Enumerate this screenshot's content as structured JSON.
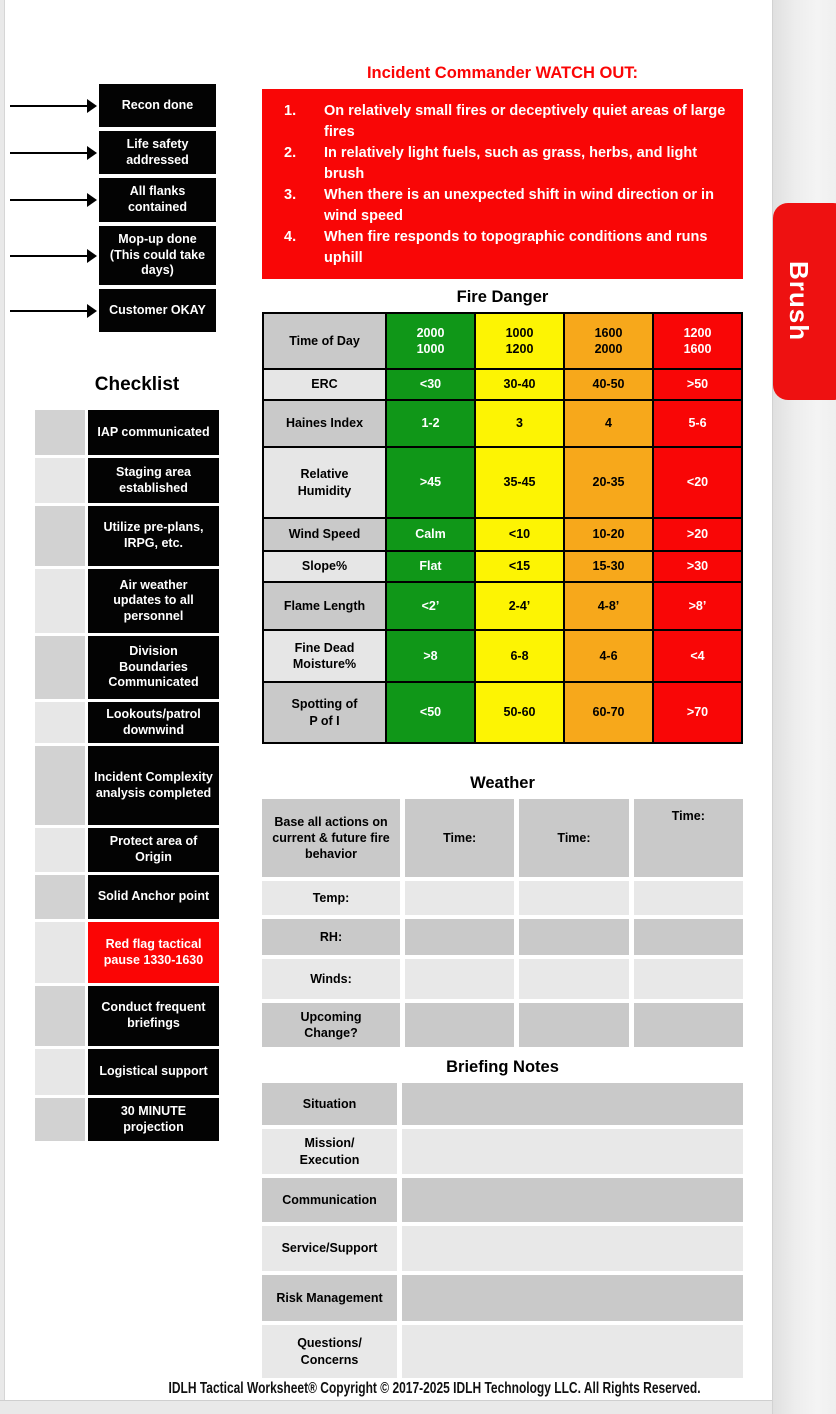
{
  "page": {
    "side_tab_label": "Brush",
    "footer_text": "IDLH Tactical Worksheet® Copyright © 2017-2025 IDLH Technology LLC. All Rights Reserved."
  },
  "colors": {
    "alert_red": "#f90606",
    "fire_green": "#109718",
    "fire_yellow": "#fdf403",
    "fire_orange": "#f7a81b",
    "fire_red": "#f90606",
    "box_black": "#030303",
    "cell_gray_dark": "#c9c9c9",
    "cell_gray_light": "#e8e8e8",
    "tab_red": "#ee1111"
  },
  "status_boxes": [
    "Recon done",
    "Life safety addressed",
    "All flanks contained",
    "Mop-up done (This could take days)",
    "Customer OKAY"
  ],
  "watch_out": {
    "title": "Incident Commander WATCH OUT:",
    "items": [
      "On relatively small fires or deceptively quiet areas of large fires",
      "In relatively light fuels, such as grass, herbs, and light brush",
      "When there is an unexpected shift in wind direction or in wind speed",
      "When fire responds to topographic conditions and runs uphill"
    ]
  },
  "checklist": {
    "title": "Checklist",
    "items": [
      {
        "label": "IAP communicated",
        "highlight": false
      },
      {
        "label": "Staging area established",
        "highlight": false
      },
      {
        "label": "Utilize pre-plans, IRPG, etc.",
        "highlight": false
      },
      {
        "label": "Air weather updates to all personnel",
        "highlight": false
      },
      {
        "label": "Division Boundaries Communicated",
        "highlight": false
      },
      {
        "label": "Lookouts/patrol downwind",
        "highlight": false
      },
      {
        "label": "Incident Complexity analysis completed",
        "highlight": false
      },
      {
        "label": "Protect area of Origin",
        "highlight": false
      },
      {
        "label": "Solid Anchor point",
        "highlight": false
      },
      {
        "label": "Red flag tactical pause 1330-1630",
        "highlight": true
      },
      {
        "label": "Conduct frequent briefings",
        "highlight": false
      },
      {
        "label": "Logistical support",
        "highlight": false
      },
      {
        "label": "30 MINUTE projection",
        "highlight": false
      }
    ]
  },
  "fire_danger": {
    "title": "Fire Danger",
    "rows": [
      {
        "label": "Time of Day",
        "values": [
          "2000\n1000",
          "1000\n1200",
          "1600\n2000",
          "1200\n1600"
        ]
      },
      {
        "label": "ERC",
        "values": [
          "<30",
          "30-40",
          "40-50",
          ">50"
        ]
      },
      {
        "label": "Haines Index",
        "values": [
          "1-2",
          "3",
          "4",
          "5-6"
        ]
      },
      {
        "label": "Relative\nHumidity",
        "values": [
          ">45",
          "35-45",
          "20-35",
          "<20"
        ]
      },
      {
        "label": "Wind Speed",
        "values": [
          "Calm",
          "<10",
          "10-20",
          ">20"
        ]
      },
      {
        "label": "Slope%",
        "values": [
          "Flat",
          "<15",
          "15-30",
          ">30"
        ]
      },
      {
        "label": "Flame Length",
        "values": [
          "<2’",
          "2-4’",
          "4-8’",
          ">8’"
        ]
      },
      {
        "label": "Fine Dead\nMoisture%",
        "values": [
          ">8",
          "6-8",
          "4-6",
          "<4"
        ]
      },
      {
        "label": "Spotting of\nP of I",
        "values": [
          "<50",
          "50-60",
          "60-70",
          ">70"
        ]
      }
    ]
  },
  "weather": {
    "title": "Weather",
    "header_label": "Base all actions on current & future fire behavior",
    "time_headers": [
      "Time:",
      "Time:",
      "Time:"
    ],
    "row_labels": [
      "Temp:",
      "RH:",
      "Winds:",
      "Upcoming\nChange?"
    ]
  },
  "briefing_notes": {
    "title": "Briefing Notes",
    "row_labels": [
      "Situation",
      "Mission/\nExecution",
      "Communication",
      "Service/Support",
      "Risk Management",
      "Questions/\nConcerns"
    ]
  }
}
